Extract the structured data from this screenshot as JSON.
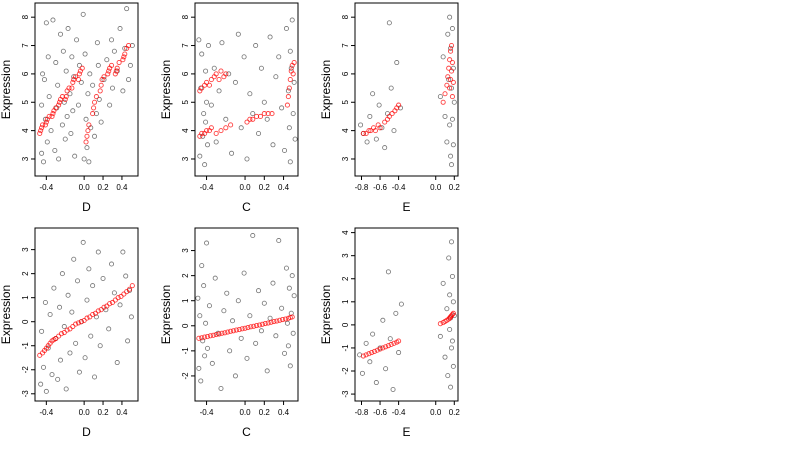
{
  "chart_data": [
    {
      "type": "scatter",
      "xlabel": "D",
      "ylabel": "Expression",
      "xlim": [
        -0.52,
        0.57
      ],
      "ylim": [
        2.4,
        8.5
      ],
      "xticks": [
        -0.4,
        0.0,
        0.2,
        0.4
      ],
      "xtick_labels": [
        "-0.4",
        "0.0",
        "0.2",
        "0.4"
      ],
      "yticks": [
        3,
        4,
        5,
        6,
        7,
        8
      ],
      "ytick_labels": [
        "3",
        "4",
        "5",
        "6",
        "7",
        "8"
      ],
      "black_x": [
        -0.45,
        -0.45,
        -0.44,
        -0.43,
        -0.42,
        -0.41,
        -0.4,
        -0.39,
        -0.38,
        -0.37,
        -0.35,
        -0.33,
        -0.31,
        -0.3,
        -0.29,
        -0.28,
        -0.27,
        -0.25,
        -0.23,
        -0.22,
        -0.21,
        -0.2,
        -0.19,
        -0.18,
        -0.17,
        -0.15,
        -0.14,
        -0.13,
        -0.12,
        -0.11,
        -0.1,
        -0.08,
        -0.06,
        -0.05,
        -0.03,
        -0.01,
        0.0,
        0.01,
        0.02,
        0.03,
        0.04,
        0.05,
        0.06,
        0.07,
        0.09,
        0.11,
        0.13,
        0.14,
        0.15,
        0.16,
        0.18,
        0.21,
        0.24,
        0.27,
        0.29,
        0.3,
        0.32,
        0.35,
        0.38,
        0.41,
        0.43,
        0.45,
        0.47,
        0.49,
        0.51
      ],
      "black_y": [
        3.2,
        4.9,
        6.0,
        2.9,
        5.8,
        4.4,
        7.8,
        3.6,
        6.6,
        5.2,
        4.0,
        7.9,
        3.3,
        6.4,
        4.8,
        5.6,
        3.0,
        7.4,
        4.2,
        6.8,
        5.0,
        3.7,
        6.1,
        4.5,
        7.6,
        5.3,
        3.9,
        6.6,
        4.7,
        5.9,
        3.1,
        7.2,
        4.9,
        6.3,
        5.7,
        8.1,
        3.0,
        6.7,
        4.4,
        3.4,
        5.3,
        2.9,
        6.0,
        4.1,
        5.6,
        3.8,
        4.6,
        7.1,
        6.3,
        5.1,
        4.3,
        5.8,
        6.5,
        4.9,
        7.2,
        5.5,
        6.8,
        6.1,
        7.6,
        5.4,
        6.9,
        8.3,
        5.8,
        6.3,
        7.0
      ],
      "red_x": [
        -0.47,
        -0.46,
        -0.45,
        -0.44,
        -0.41,
        -0.4,
        -0.39,
        -0.37,
        -0.34,
        -0.33,
        -0.32,
        -0.3,
        -0.27,
        -0.26,
        -0.25,
        -0.23,
        -0.2,
        -0.19,
        -0.18,
        -0.16,
        -0.13,
        -0.12,
        -0.11,
        -0.09,
        -0.06,
        -0.05,
        -0.04,
        -0.02,
        0.02,
        0.03,
        0.04,
        0.05,
        0.09,
        0.1,
        0.11,
        0.13,
        0.17,
        0.18,
        0.19,
        0.21,
        0.25,
        0.26,
        0.27,
        0.29,
        0.33,
        0.34,
        0.35,
        0.37,
        0.41,
        0.42,
        0.43,
        0.45,
        0.47
      ],
      "red_y": [
        3.9,
        4.0,
        4.1,
        4.2,
        4.2,
        4.3,
        4.4,
        4.5,
        4.5,
        4.6,
        4.7,
        4.8,
        4.9,
        5.0,
        5.1,
        5.2,
        5.1,
        5.2,
        5.4,
        5.5,
        5.5,
        5.7,
        5.8,
        5.9,
        5.8,
        6.0,
        6.1,
        6.2,
        3.6,
        3.8,
        4.0,
        4.2,
        4.6,
        4.8,
        5.0,
        5.2,
        5.4,
        5.6,
        5.8,
        5.9,
        6.0,
        6.1,
        6.2,
        6.3,
        6.0,
        6.1,
        6.2,
        6.4,
        6.5,
        6.6,
        6.7,
        6.9,
        7.0
      ]
    },
    {
      "type": "scatter",
      "xlabel": "C",
      "ylabel": "Expression",
      "xlim": [
        -0.52,
        0.55
      ],
      "ylim": [
        2.4,
        8.5
      ],
      "xticks": [
        -0.4,
        0.0,
        0.2,
        0.4
      ],
      "xtick_labels": [
        "-0.4",
        "0.0",
        "0.2",
        "0.4"
      ],
      "yticks": [
        3,
        4,
        5,
        6,
        7,
        8
      ],
      "ytick_labels": [
        "3",
        "4",
        "5",
        "6",
        "7",
        "8"
      ],
      "black_x": [
        -0.48,
        -0.47,
        -0.46,
        -0.45,
        -0.44,
        -0.43,
        -0.42,
        -0.41,
        -0.41,
        -0.4,
        -0.39,
        -0.38,
        -0.35,
        -0.32,
        -0.3,
        -0.27,
        -0.24,
        -0.2,
        -0.17,
        -0.14,
        -0.1,
        -0.07,
        -0.04,
        -0.01,
        0.02,
        0.05,
        0.08,
        0.11,
        0.14,
        0.17,
        0.2,
        0.23,
        0.26,
        0.29,
        0.32,
        0.35,
        0.38,
        0.41,
        0.43,
        0.45,
        0.46,
        0.47,
        0.47,
        0.48,
        0.49,
        0.5,
        0.51,
        0.52
      ],
      "black_y": [
        7.2,
        3.1,
        5.5,
        6.7,
        3.8,
        4.6,
        2.8,
        6.1,
        4.3,
        5.0,
        3.5,
        7.0,
        4.9,
        6.2,
        3.6,
        5.4,
        7.1,
        4.4,
        6.0,
        3.2,
        5.7,
        7.4,
        4.1,
        6.6,
        3.0,
        5.3,
        4.6,
        7.0,
        3.9,
        6.2,
        5.0,
        4.4,
        7.3,
        3.5,
        5.9,
        6.6,
        4.8,
        3.3,
        7.6,
        5.4,
        4.1,
        6.8,
        2.9,
        6.2,
        7.9,
        4.6,
        5.7,
        3.7
      ],
      "red_x": [
        -0.47,
        -0.45,
        -0.42,
        -0.4,
        -0.37,
        -0.35,
        -0.32,
        -0.3,
        -0.27,
        -0.25,
        -0.22,
        -0.2,
        -0.47,
        -0.45,
        -0.42,
        -0.4,
        -0.37,
        -0.35,
        -0.3,
        -0.25,
        -0.2,
        -0.15,
        0.02,
        0.05,
        0.08,
        0.12,
        0.16,
        0.2,
        0.24,
        0.28,
        0.44,
        0.45,
        0.46,
        0.47,
        0.48,
        0.49,
        0.5,
        0.51
      ],
      "red_y": [
        5.4,
        5.5,
        5.6,
        5.7,
        5.6,
        5.8,
        5.9,
        6.0,
        5.8,
        6.1,
        5.9,
        6.0,
        3.8,
        3.9,
        3.9,
        4.0,
        4.0,
        4.1,
        3.9,
        4.0,
        4.1,
        4.2,
        4.3,
        4.4,
        4.4,
        4.5,
        4.5,
        4.6,
        4.6,
        4.6,
        4.9,
        5.2,
        5.5,
        5.8,
        6.1,
        6.3,
        6.0,
        6.4
      ]
    },
    {
      "type": "scatter",
      "xlabel": "E",
      "ylabel": "Expression",
      "xlim": [
        -0.87,
        0.24
      ],
      "ylim": [
        2.4,
        8.5
      ],
      "xticks": [
        -0.8,
        -0.6,
        -0.4,
        0.0,
        0.2
      ],
      "xtick_labels": [
        "-0.8",
        "-0.6",
        "-0.4",
        "0.0",
        "0.2"
      ],
      "yticks": [
        3,
        4,
        5,
        6,
        7,
        8
      ],
      "ytick_labels": [
        "3",
        "4",
        "5",
        "6",
        "7",
        "8"
      ],
      "black_x": [
        -0.81,
        -0.78,
        -0.74,
        -0.71,
        -0.68,
        -0.64,
        -0.61,
        -0.58,
        -0.55,
        -0.52,
        -0.5,
        -0.48,
        -0.45,
        -0.42,
        -0.38,
        0.05,
        0.08,
        0.1,
        0.12,
        0.13,
        0.14,
        0.15,
        0.15,
        0.16,
        0.16,
        0.17,
        0.17,
        0.18,
        0.18,
        0.19,
        0.19,
        0.2
      ],
      "black_y": [
        4.2,
        3.9,
        3.6,
        4.5,
        5.3,
        3.7,
        4.9,
        4.1,
        3.4,
        4.6,
        7.8,
        5.5,
        4.0,
        6.4,
        4.8,
        5.2,
        6.6,
        4.5,
        3.6,
        7.4,
        5.8,
        4.2,
        8.0,
        3.1,
        6.9,
        5.5,
        2.8,
        7.6,
        4.4,
        6.2,
        3.5,
        5.0
      ],
      "red_x": [
        -0.78,
        -0.75,
        -0.72,
        -0.7,
        -0.67,
        -0.65,
        -0.62,
        -0.6,
        -0.55,
        -0.52,
        -0.5,
        -0.47,
        -0.44,
        -0.42,
        -0.4,
        0.08,
        0.1,
        0.12,
        0.13,
        0.14,
        0.15,
        0.15,
        0.16,
        0.16,
        0.17,
        0.17,
        0.18,
        0.18,
        0.19
      ],
      "red_y": [
        3.9,
        3.9,
        4.0,
        4.0,
        4.1,
        4.0,
        4.2,
        4.1,
        4.3,
        4.4,
        4.5,
        4.6,
        4.7,
        4.8,
        4.9,
        5.0,
        5.3,
        5.6,
        5.9,
        6.2,
        5.5,
        6.5,
        5.8,
        6.8,
        6.1,
        7.0,
        5.2,
        6.4,
        5.7
      ]
    },
    {
      "type": "scatter",
      "xlabel": "D",
      "ylabel": "Expression",
      "xlim": [
        -0.52,
        0.57
      ],
      "ylim": [
        -3.3,
        3.9
      ],
      "xticks": [
        -0.4,
        0.0,
        0.2,
        0.4
      ],
      "xtick_labels": [
        "-0.4",
        "0.0",
        "0.2",
        "0.4"
      ],
      "yticks": [
        -3,
        -2,
        -1,
        0,
        1,
        2,
        3
      ],
      "ytick_labels": [
        "-3",
        "-2",
        "-1",
        "0",
        "1",
        "2",
        "3"
      ],
      "black_x": [
        -0.46,
        -0.45,
        -0.43,
        -0.41,
        -0.4,
        -0.38,
        -0.36,
        -0.34,
        -0.32,
        -0.3,
        -0.28,
        -0.26,
        -0.25,
        -0.23,
        -0.21,
        -0.19,
        -0.17,
        -0.15,
        -0.13,
        -0.11,
        -0.09,
        -0.07,
        -0.05,
        -0.03,
        -0.01,
        0.01,
        0.03,
        0.05,
        0.07,
        0.09,
        0.11,
        0.13,
        0.15,
        0.17,
        0.2,
        0.23,
        0.26,
        0.29,
        0.32,
        0.35,
        0.38,
        0.41,
        0.44,
        0.46,
        0.48,
        0.5
      ],
      "black_y": [
        -2.6,
        -0.4,
        -1.9,
        0.8,
        -2.9,
        -1.1,
        0.3,
        -2.2,
        1.4,
        -0.7,
        -2.4,
        0.6,
        -1.6,
        2.0,
        -0.2,
        -2.8,
        1.1,
        -1.3,
        0.4,
        2.6,
        -0.9,
        1.7,
        -2.1,
        0.0,
        3.3,
        -1.5,
        0.9,
        2.2,
        -0.6,
        1.5,
        -2.3,
        0.2,
        2.9,
        -1.0,
        1.8,
        0.5,
        -0.3,
        2.4,
        1.2,
        -1.7,
        0.7,
        2.9,
        1.9,
        -0.8,
        1.3,
        0.2
      ],
      "red_x": [
        -0.47,
        -0.44,
        -0.42,
        -0.4,
        -0.38,
        -0.36,
        -0.34,
        -0.32,
        -0.3,
        -0.27,
        -0.24,
        -0.21,
        -0.18,
        -0.15,
        -0.12,
        -0.09,
        -0.06,
        -0.03,
        0.0,
        0.03,
        0.06,
        0.09,
        0.12,
        0.15,
        0.18,
        0.21,
        0.24,
        0.27,
        0.3,
        0.33,
        0.36,
        0.39,
        0.42,
        0.45,
        0.48,
        0.51
      ],
      "red_y": [
        -1.4,
        -1.3,
        -1.2,
        -1.1,
        -1.0,
        -0.9,
        -0.8,
        -0.75,
        -0.7,
        -0.6,
        -0.5,
        -0.45,
        -0.35,
        -0.3,
        -0.2,
        -0.1,
        -0.05,
        0.0,
        0.05,
        0.15,
        0.2,
        0.3,
        0.35,
        0.45,
        0.5,
        0.6,
        0.65,
        0.75,
        0.8,
        0.9,
        1.0,
        1.05,
        1.15,
        1.25,
        1.35,
        1.5
      ]
    },
    {
      "type": "scatter",
      "xlabel": "C",
      "ylabel": "Expression",
      "xlim": [
        -0.52,
        0.55
      ],
      "ylim": [
        -3.0,
        3.9
      ],
      "xticks": [
        -0.4,
        0.0,
        0.2,
        0.4
      ],
      "xtick_labels": [
        "-0.4",
        "0.0",
        "0.2",
        "0.4"
      ],
      "yticks": [
        -2,
        -1,
        0,
        1,
        2,
        3
      ],
      "ytick_labels": [
        "-2",
        "-1",
        "0",
        "1",
        "2",
        "3"
      ],
      "black_x": [
        -0.49,
        -0.48,
        -0.47,
        -0.46,
        -0.45,
        -0.44,
        -0.43,
        -0.42,
        -0.41,
        -0.4,
        -0.39,
        -0.37,
        -0.34,
        -0.31,
        -0.28,
        -0.25,
        -0.22,
        -0.19,
        -0.16,
        -0.13,
        -0.1,
        -0.07,
        -0.04,
        -0.01,
        0.02,
        0.05,
        0.08,
        0.11,
        0.14,
        0.17,
        0.2,
        0.23,
        0.26,
        0.29,
        0.32,
        0.35,
        0.38,
        0.41,
        0.43,
        0.44,
        0.45,
        0.46,
        0.47,
        0.48,
        0.49,
        0.5,
        0.51
      ],
      "black_y": [
        1.1,
        -1.7,
        0.4,
        -2.2,
        2.4,
        -0.6,
        1.6,
        -1.2,
        0.1,
        3.3,
        -0.9,
        0.8,
        -1.5,
        1.9,
        -0.3,
        -2.5,
        0.6,
        1.3,
        -1.0,
        0.2,
        -2.0,
        1.0,
        -0.5,
        2.1,
        -1.3,
        0.4,
        3.6,
        -0.7,
        1.4,
        -0.2,
        0.9,
        -1.8,
        0.3,
        1.7,
        -0.4,
        3.4,
        0.7,
        -1.1,
        2.3,
        0.1,
        -0.8,
        1.5,
        -1.6,
        0.5,
        2.0,
        -0.3,
        1.2
      ],
      "red_x": [
        -0.48,
        -0.45,
        -0.42,
        -0.39,
        -0.36,
        -0.33,
        -0.3,
        -0.27,
        -0.24,
        -0.21,
        -0.18,
        -0.15,
        -0.12,
        -0.09,
        -0.06,
        -0.03,
        0.0,
        0.03,
        0.06,
        0.09,
        0.12,
        0.15,
        0.18,
        0.21,
        0.24,
        0.27,
        0.3,
        0.33,
        0.36,
        0.39,
        0.42,
        0.45,
        0.47,
        0.49
      ],
      "red_y": [
        -0.5,
        -0.48,
        -0.45,
        -0.43,
        -0.4,
        -0.38,
        -0.35,
        -0.33,
        -0.3,
        -0.28,
        -0.25,
        -0.22,
        -0.2,
        -0.17,
        -0.15,
        -0.12,
        -0.1,
        -0.07,
        -0.04,
        -0.02,
        0.01,
        0.03,
        0.06,
        0.09,
        0.11,
        0.14,
        0.17,
        0.19,
        0.22,
        0.25,
        0.27,
        0.3,
        0.33,
        0.35
      ]
    },
    {
      "type": "scatter",
      "xlabel": "E",
      "ylabel": "Expression",
      "xlim": [
        -0.87,
        0.24
      ],
      "ylim": [
        -3.3,
        4.2
      ],
      "xticks": [
        -0.8,
        -0.6,
        -0.4,
        0.0,
        0.2
      ],
      "xtick_labels": [
        "-0.8",
        "-0.6",
        "-0.4",
        "0.0",
        "0.2"
      ],
      "yticks": [
        -3,
        -2,
        -1,
        0,
        1,
        2,
        3,
        4
      ],
      "ytick_labels": [
        "-3",
        "-2",
        "-1",
        "0",
        "1",
        "2",
        "3",
        "4"
      ],
      "black_x": [
        -0.82,
        -0.79,
        -0.75,
        -0.71,
        -0.68,
        -0.64,
        -0.6,
        -0.57,
        -0.54,
        -0.51,
        -0.49,
        -0.46,
        -0.43,
        -0.4,
        -0.37,
        0.05,
        0.08,
        0.1,
        0.12,
        0.13,
        0.14,
        0.15,
        0.15,
        0.16,
        0.16,
        0.17,
        0.17,
        0.18,
        0.18,
        0.19,
        0.19,
        0.2
      ],
      "black_y": [
        -1.3,
        -2.1,
        -0.8,
        -1.6,
        -0.4,
        -2.5,
        -1.0,
        0.2,
        -1.9,
        2.3,
        -0.6,
        -2.8,
        0.5,
        -1.2,
        0.9,
        -0.5,
        1.8,
        -1.4,
        0.7,
        -2.2,
        2.9,
        -0.2,
        1.3,
        -2.7,
        0.3,
        3.6,
        -1.0,
        2.1,
        -0.7,
        1.0,
        -1.8,
        0.4
      ],
      "red_x": [
        -0.78,
        -0.75,
        -0.72,
        -0.69,
        -0.66,
        -0.63,
        -0.6,
        -0.57,
        -0.54,
        -0.51,
        -0.48,
        -0.45,
        -0.42,
        -0.4,
        0.05,
        0.08,
        0.1,
        0.12,
        0.14,
        0.15,
        0.16,
        0.17,
        0.18,
        0.19
      ],
      "red_y": [
        -1.35,
        -1.3,
        -1.25,
        -1.2,
        -1.15,
        -1.1,
        -1.05,
        -1.0,
        -0.95,
        -0.9,
        -0.85,
        -0.8,
        -0.75,
        -0.7,
        0.05,
        0.1,
        0.15,
        0.2,
        0.25,
        0.3,
        0.35,
        0.4,
        0.45,
        0.5
      ]
    }
  ],
  "colors": {
    "black_points": "#000000",
    "red_points": "#ff0000",
    "frame": "#000000",
    "background": "#ffffff"
  }
}
